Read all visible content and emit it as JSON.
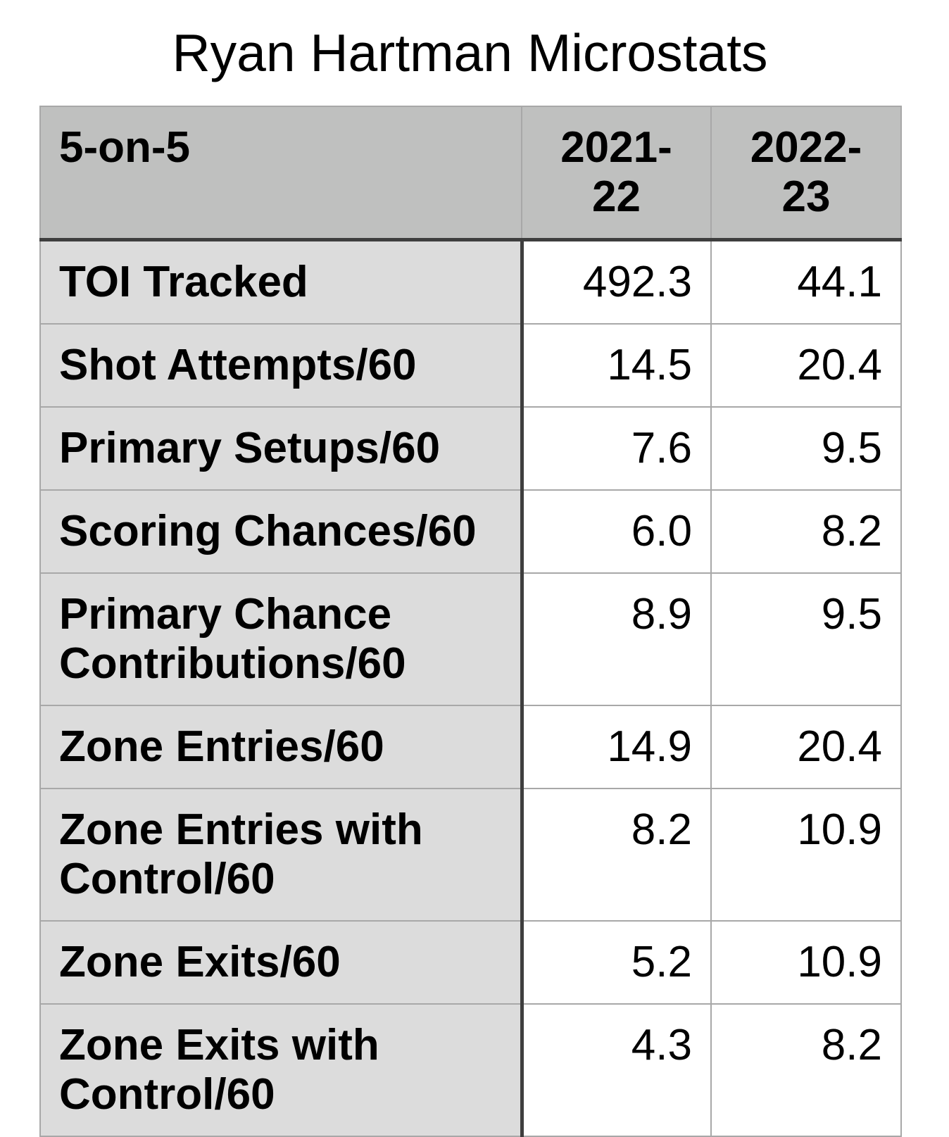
{
  "title": "Ryan Hartman Microstats",
  "table": {
    "header": {
      "label": "5-on-5",
      "col1": "2021-22",
      "col2": "2022-23"
    },
    "rows": [
      {
        "label": "TOI Tracked",
        "v1": "492.3",
        "v2": "44.1"
      },
      {
        "label": "Shot Attempts/60",
        "v1": "14.5",
        "v2": "20.4"
      },
      {
        "label": "Primary Setups/60",
        "v1": "7.6",
        "v2": "9.5"
      },
      {
        "label": "Scoring Chances/60",
        "v1": "6.0",
        "v2": "8.2"
      },
      {
        "label": "Primary Chance Contributions/60",
        "v1": "8.9",
        "v2": "9.5"
      },
      {
        "label": "Zone Entries/60",
        "v1": "14.9",
        "v2": "20.4"
      },
      {
        "label": "Zone Entries with Control/60",
        "v1": "8.2",
        "v2": "10.9"
      },
      {
        "label": "Zone Exits/60",
        "v1": "5.2",
        "v2": "10.9"
      },
      {
        "label": "Zone Exits with Control/60",
        "v1": "4.3",
        "v2": "8.2"
      }
    ]
  },
  "colors": {
    "header_bg": "#bfc0bf",
    "label_bg": "#dcdcdc",
    "grid_line": "#a8a8a8",
    "dark_border": "#3e3e3e",
    "text": "#000000"
  },
  "chart_data": {
    "type": "table",
    "title": "Ryan Hartman Microstats",
    "columns": [
      "5-on-5",
      "2021-22",
      "2022-23"
    ],
    "rows": [
      [
        "TOI Tracked",
        492.3,
        44.1
      ],
      [
        "Shot Attempts/60",
        14.5,
        20.4
      ],
      [
        "Primary Setups/60",
        7.6,
        9.5
      ],
      [
        "Scoring Chances/60",
        6.0,
        8.2
      ],
      [
        "Primary Chance Contributions/60",
        8.9,
        9.5
      ],
      [
        "Zone Entries/60",
        14.9,
        20.4
      ],
      [
        "Zone Entries with Control/60",
        8.2,
        10.9
      ],
      [
        "Zone Exits/60",
        5.2,
        10.9
      ],
      [
        "Zone Exits with Control/60",
        4.3,
        8.2
      ]
    ]
  }
}
